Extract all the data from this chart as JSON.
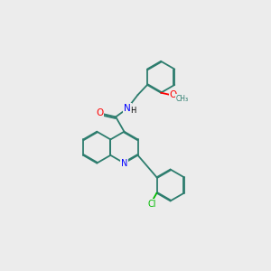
{
  "background_color": "#ececec",
  "bond_color": "#2d7d6e",
  "N_color": "#0000ff",
  "O_color": "#ff0000",
  "Cl_color": "#00bb00",
  "line_width": 1.3,
  "dbo": 0.035,
  "figsize": [
    3.0,
    3.0
  ],
  "dpi": 100,
  "xlim": [
    -1.5,
    8.5
  ],
  "ylim": [
    -3.5,
    5.5
  ],
  "r": 0.75
}
